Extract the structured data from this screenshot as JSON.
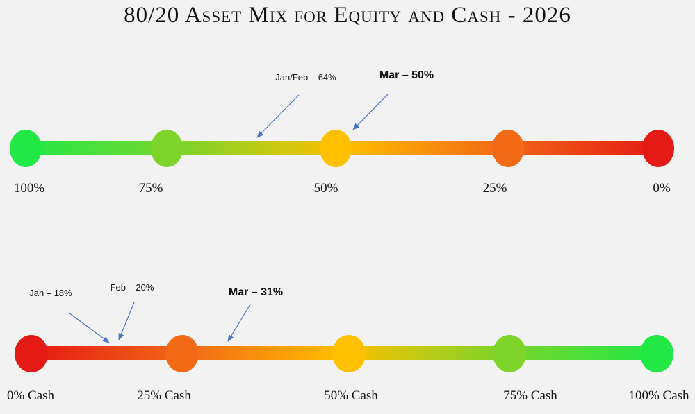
{
  "title": "80/20 Asset Mix for Equity and Cash - 2026",
  "colors": {
    "green": "#22e846",
    "lime": "#7ed42a",
    "yellow": "#ffc000",
    "orange": "#f26a16",
    "red": "#e41a14",
    "arrow": "#4a72c4"
  },
  "equity_scale": {
    "ticks": [
      {
        "label": "100%",
        "color": "green"
      },
      {
        "label": "75%",
        "color": "lime"
      },
      {
        "label": "50%",
        "color": "yellow"
      },
      {
        "label": "25%",
        "color": "orange"
      },
      {
        "label": "0%",
        "color": "red"
      }
    ],
    "annotations": [
      {
        "label": "Jan/Feb – 64%",
        "value": 64,
        "bold": false
      },
      {
        "label": "Mar – 50%",
        "value": 50,
        "bold": true
      }
    ]
  },
  "cash_scale": {
    "ticks": [
      {
        "label": "0% Cash",
        "color": "red"
      },
      {
        "label": "25% Cash",
        "color": "orange"
      },
      {
        "label": "50% Cash",
        "color": "yellow"
      },
      {
        "label": "75% Cash",
        "color": "lime"
      },
      {
        "label": "100% Cash",
        "color": "green"
      }
    ],
    "annotations": [
      {
        "label": "Jan – 18%",
        "value": 18,
        "bold": false
      },
      {
        "label": "Feb – 20%",
        "value": 20,
        "bold": false
      },
      {
        "label": "Mar – 31%",
        "value": 31,
        "bold": true
      }
    ]
  }
}
